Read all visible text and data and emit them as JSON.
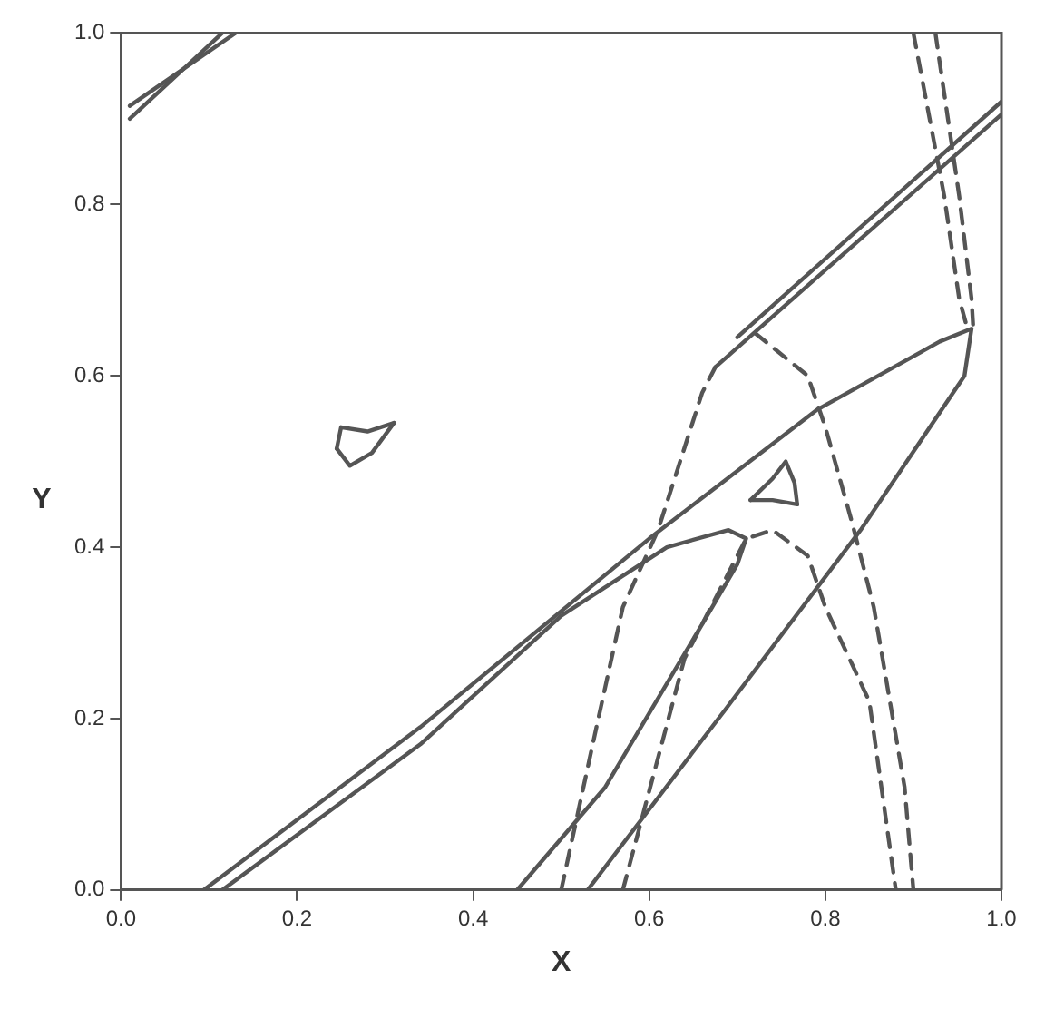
{
  "chart_data": {
    "type": "line",
    "xlabel": "X",
    "ylabel": "Y",
    "xlim": [
      0,
      1
    ],
    "ylim": [
      0,
      1
    ],
    "xticks": [
      {
        "value": 0,
        "label": "0.0"
      },
      {
        "value": 0.2,
        "label": "0.2"
      },
      {
        "value": 0.4,
        "label": "0.4"
      },
      {
        "value": 0.6,
        "label": "0.6"
      },
      {
        "value": 0.8,
        "label": "0.8"
      },
      {
        "value": 1,
        "label": "1.0"
      }
    ],
    "yticks": [
      {
        "value": 0,
        "label": "0.0"
      },
      {
        "value": 0.2,
        "label": "0.2"
      },
      {
        "value": 0.4,
        "label": "0.4"
      },
      {
        "value": 0.6,
        "label": "0.6"
      },
      {
        "value": 0.8,
        "label": "0.8"
      },
      {
        "value": 1,
        "label": "1.0"
      }
    ],
    "grid": false,
    "legend": false,
    "marker": "none",
    "series": [
      {
        "color": "#555555",
        "line_style": "solid",
        "x": [
          0.094,
          0.34,
          0.6,
          0.79,
          0.93,
          0.966,
          0.958,
          0.84,
          0.686,
          0.53
        ],
        "values": [
          0,
          0.19,
          0.41,
          0.56,
          0.64,
          0.655,
          0.6,
          0.42,
          0.21,
          0
        ]
      },
      {
        "color": "#555555",
        "line_style": "solid",
        "x": [
          0.115,
          0.34,
          0.5,
          0.62,
          0.69,
          0.71,
          0.7,
          0.66,
          0.55,
          0.45
        ],
        "values": [
          0,
          0.17,
          0.32,
          0.4,
          0.42,
          0.41,
          0.38,
          0.31,
          0.12,
          0
        ]
      },
      {
        "color": "#555555",
        "line_style": "solid",
        "x": [
          0.01,
          0.115
        ],
        "values": [
          0.9,
          1
        ]
      },
      {
        "color": "#555555",
        "line_style": "solid",
        "x": [
          0.01,
          0.13
        ],
        "values": [
          0.915,
          1
        ]
      },
      {
        "color": "#555555",
        "line_style": "solid",
        "x": [
          0.675,
          1
        ],
        "values": [
          0.61,
          0.905
        ]
      },
      {
        "color": "#555555",
        "line_style": "solid",
        "x": [
          0.7,
          1
        ],
        "values": [
          0.645,
          0.92
        ]
      },
      {
        "color": "#555555",
        "line_style": "solid",
        "x": [
          0.245,
          0.25,
          0.28,
          0.31
        ],
        "values": [
          0.515,
          0.54,
          0.535,
          0.545
        ]
      },
      {
        "color": "#555555",
        "line_style": "solid",
        "x": [
          0.245,
          0.26,
          0.285,
          0.31
        ],
        "values": [
          0.515,
          0.495,
          0.51,
          0.545
        ]
      },
      {
        "color": "#555555",
        "line_style": "solid",
        "x": [
          0.715,
          0.74,
          0.755,
          0.765,
          0.768
        ],
        "values": [
          0.455,
          0.48,
          0.5,
          0.475,
          0.45
        ]
      },
      {
        "color": "#555555",
        "line_style": "solid",
        "x": [
          0.715,
          0.74,
          0.768
        ],
        "values": [
          0.455,
          0.455,
          0.45
        ]
      },
      {
        "color": "#555555",
        "line_style": "dashed",
        "x": [
          0.5,
          0.54,
          0.57,
          0.61,
          0.66,
          0.675
        ],
        "values": [
          0,
          0.19,
          0.33,
          0.42,
          0.58,
          0.61
        ]
      },
      {
        "color": "#555555",
        "line_style": "dashed",
        "x": [
          0.57,
          0.64,
          0.71,
          0.74,
          0.78,
          0.8,
          0.85,
          0.88
        ],
        "values": [
          0,
          0.27,
          0.41,
          0.42,
          0.39,
          0.33,
          0.22,
          0
        ]
      },
      {
        "color": "#555555",
        "line_style": "dashed",
        "x": [
          0.72,
          0.78,
          0.8,
          0.83,
          0.855,
          0.89,
          0.9
        ],
        "values": [
          0.65,
          0.6,
          0.54,
          0.43,
          0.33,
          0.12,
          0
        ]
      },
      {
        "color": "#555555",
        "line_style": "dashed",
        "x": [
          0.9,
          0.935,
          0.952,
          0.96
        ],
        "values": [
          1,
          0.81,
          0.69,
          0.66
        ]
      },
      {
        "color": "#555555",
        "line_style": "dashed",
        "x": [
          0.925,
          0.952,
          0.966,
          0.968
        ],
        "values": [
          1,
          0.81,
          0.69,
          0.655
        ]
      }
    ]
  }
}
